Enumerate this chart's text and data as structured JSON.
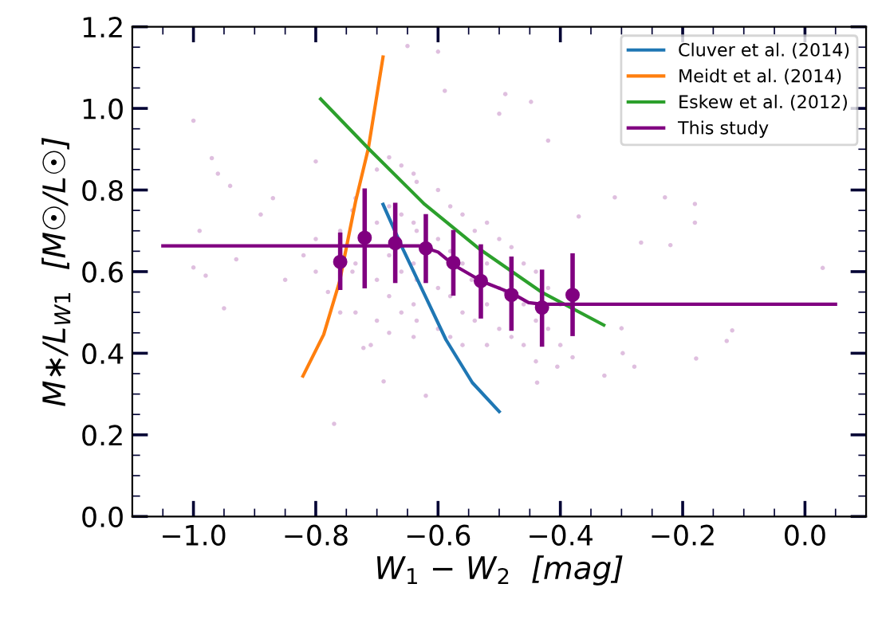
{
  "chart_data": {
    "type": "line",
    "xlabel": "W$_{1}$ − W$_{2}$  [mag]",
    "ylabel": "M∗/L$_{W1}$  [M☉/L☉]",
    "xlim": [
      -1.1,
      0.1
    ],
    "ylim": [
      0,
      1.2
    ],
    "xticks": [
      {
        "value": -1.0,
        "label": "−1.0"
      },
      {
        "value": -0.8,
        "label": "−0.8"
      },
      {
        "value": -0.6,
        "label": "−0.6"
      },
      {
        "value": -0.4,
        "label": "−0.4"
      },
      {
        "value": -0.2,
        "label": "−0.2"
      },
      {
        "value": 0.0,
        "label": "0.0"
      }
    ],
    "yticks": [
      {
        "value": 0.0,
        "label": "0.0"
      },
      {
        "value": 0.2,
        "label": "0.2"
      },
      {
        "value": 0.4,
        "label": "0.4"
      },
      {
        "value": 0.6,
        "label": "0.6"
      },
      {
        "value": 0.8,
        "label": "0.8"
      },
      {
        "value": 1.0,
        "label": "1.0"
      },
      {
        "value": 1.2,
        "label": "1.2"
      }
    ],
    "legend": "top right",
    "grid": false,
    "series": [
      {
        "type": "scatter",
        "color": "#800080",
        "marker": "circle",
        "x": [
          -1.0,
          -0.97,
          -0.96,
          -0.94,
          -0.99,
          -1.0,
          -0.98,
          -0.95,
          -0.93,
          -0.89,
          -0.87,
          -0.8,
          -0.77,
          -0.65,
          -0.6,
          -0.589,
          -0.49,
          -0.448,
          -0.5,
          -0.42,
          -0.37,
          -0.311,
          -0.229,
          -0.18,
          -0.18,
          -0.22,
          -0.268,
          0.029,
          -0.3,
          -0.298,
          -0.279,
          -0.328,
          -0.178,
          -0.128,
          -0.119,
          -0.438,
          -0.62,
          -0.689,
          -0.722,
          -0.71,
          -0.405,
          -0.38,
          -0.735,
          -0.735,
          -0.735,
          -0.7,
          -0.7,
          -0.7,
          -0.7,
          -0.68,
          -0.68,
          -0.68,
          -0.68,
          -0.68,
          -0.66,
          -0.66,
          -0.66,
          -0.66,
          -0.64,
          -0.64,
          -0.64,
          -0.64,
          -0.64,
          -0.635,
          -0.635,
          -0.635,
          -0.635,
          -0.6,
          -0.6,
          -0.6,
          -0.6,
          -0.58,
          -0.58,
          -0.58,
          -0.58,
          -0.56,
          -0.56,
          -0.56,
          -0.56,
          -0.54,
          -0.545,
          -0.54,
          -0.52,
          -0.52,
          -0.52,
          -0.52,
          -0.5,
          -0.5,
          -0.5,
          -0.48,
          -0.49,
          -0.48,
          -0.46,
          -0.46,
          -0.46,
          -0.44,
          -0.44,
          -0.44,
          -0.42,
          -0.42,
          -0.4,
          -0.4,
          -0.8,
          -0.8,
          -0.82,
          -0.85,
          -0.78,
          -0.76,
          -0.76,
          -0.74,
          -0.74
        ],
        "values": [
          0.97,
          0.878,
          0.84,
          0.81,
          0.7,
          0.61,
          0.59,
          0.51,
          0.63,
          0.74,
          0.78,
          0.87,
          0.227,
          1.153,
          1.139,
          1.043,
          1.035,
          1.016,
          0.987,
          0.921,
          0.735,
          0.782,
          0.782,
          0.766,
          0.72,
          0.665,
          0.671,
          0.609,
          0.461,
          0.4,
          0.367,
          0.345,
          0.387,
          0.43,
          0.456,
          0.328,
          0.296,
          0.331,
          0.413,
          0.42,
          0.367,
          0.39,
          0.78,
          0.62,
          0.5,
          0.85,
          0.72,
          0.58,
          0.48,
          0.88,
          0.76,
          0.64,
          0.54,
          0.45,
          0.86,
          0.74,
          0.6,
          0.5,
          0.84,
          0.72,
          0.62,
          0.52,
          0.44,
          0.82,
          0.7,
          0.58,
          0.48,
          0.8,
          0.68,
          0.56,
          0.46,
          0.76,
          0.65,
          0.54,
          0.44,
          0.74,
          0.62,
          0.5,
          0.42,
          0.7,
          0.58,
          0.48,
          0.72,
          0.62,
          0.52,
          0.42,
          0.68,
          0.56,
          0.46,
          0.66,
          0.55,
          0.44,
          0.62,
          0.52,
          0.42,
          0.6,
          0.48,
          0.38,
          0.56,
          0.46,
          0.52,
          0.42,
          0.68,
          0.6,
          0.64,
          0.58,
          0.55,
          0.7,
          0.5,
          0.75,
          0.6
        ]
      },
      {
        "name": "Cluver et al. (2014)",
        "color": "#1f77b4",
        "marker": "none",
        "x": [
          -0.69,
          -0.657,
          -0.62,
          -0.587,
          -0.544,
          -0.5
        ],
        "values": [
          0.765,
          0.654,
          0.537,
          0.433,
          0.328,
          0.257
        ]
      },
      {
        "name": "Meidt et al. (2014)",
        "color": "#ff7f0e",
        "marker": "none",
        "x": [
          -0.821,
          -0.787,
          -0.761,
          -0.735,
          -0.714,
          -0.69
        ],
        "values": [
          0.344,
          0.446,
          0.576,
          0.771,
          0.902,
          1.126
        ]
      },
      {
        "name": "Eskew et al. (2012)",
        "color": "#2ca02c",
        "marker": "none",
        "x": [
          -0.792,
          -0.714,
          -0.622,
          -0.531,
          -0.431,
          -0.329
        ],
        "values": [
          1.023,
          0.902,
          0.765,
          0.654,
          0.55,
          0.469
        ]
      },
      {
        "name": "This study",
        "color": "#800080",
        "marker": "none",
        "x": [
          -1.05,
          -0.63,
          -0.6,
          -0.573,
          -0.528,
          -0.479,
          -0.452,
          -0.43,
          0.05
        ],
        "values": [
          0.663,
          0.663,
          0.648,
          0.615,
          0.576,
          0.547,
          0.524,
          0.52,
          0.52
        ]
      },
      {
        "type": "scatter",
        "color": "#800080",
        "marker": "circle",
        "x": [
          -0.76,
          -0.72,
          -0.67,
          -0.62,
          -0.575,
          -0.53,
          -0.48,
          -0.43,
          -0.38
        ],
        "values": [
          0.624,
          0.683,
          0.67,
          0.657,
          0.622,
          0.577,
          0.543,
          0.512,
          0.543
        ],
        "errors": [
          [
            0.555,
            0.696
          ],
          [
            0.559,
            0.804
          ],
          [
            0.572,
            0.769
          ],
          [
            0.572,
            0.741
          ],
          [
            0.541,
            0.702
          ],
          [
            0.485,
            0.667
          ],
          [
            0.455,
            0.637
          ],
          [
            0.416,
            0.605
          ],
          [
            0.442,
            0.645
          ]
        ]
      }
    ]
  }
}
